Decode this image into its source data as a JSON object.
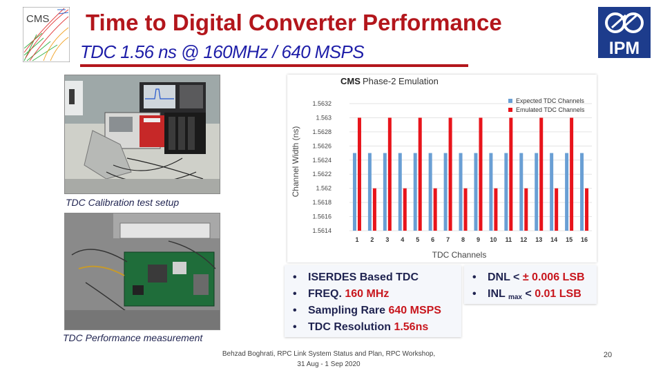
{
  "slide": {
    "title": "Time to Digital Converter Performance",
    "subtitle": "TDC 1.56 ns @ 160MHz / 640 MSPS",
    "logo_left_text": "CMS",
    "logo_right_text": "IPM",
    "photo1_caption": "TDC Calibration test setup",
    "photo2_caption": "TDC Performance measurement",
    "footer_line1": "Behzad Boghrati, RPC Link System Status and Plan, RPC Workshop,",
    "footer_line2": "31 Aug - 1 Sep 2020",
    "slide_number": "20"
  },
  "bullets_left": [
    {
      "text": "ISERDES Based TDC",
      "highlight": ""
    },
    {
      "text": "FREQ. ",
      "highlight": "160 MHz"
    },
    {
      "text": "Sampling Rare  ",
      "highlight": "640 MSPS"
    },
    {
      "text": "TDC Resolution ",
      "highlight": "1.56ns"
    }
  ],
  "bullets_right": [
    {
      "pre": "DNL < ",
      "hl": "± 0.006 LSB",
      "sub": "",
      "mid": ""
    },
    {
      "pre": "INL ",
      "sub": "max",
      "mid": " < ",
      "hl": "0.01 LSB"
    }
  ],
  "chart_data": {
    "type": "bar",
    "title_prefix": "CMS",
    "title": "Phase-2 Emulation",
    "xlabel": "TDC Channels",
    "ylabel": "Channel Width (ns)",
    "categories": [
      "1",
      "2",
      "3",
      "4",
      "5",
      "6",
      "7",
      "8",
      "9",
      "10",
      "11",
      "12",
      "13",
      "14",
      "15",
      "16"
    ],
    "ylim": [
      1.5614,
      1.5632
    ],
    "yticks": [
      "1.5632",
      "1.563",
      "1.5628",
      "1.5626",
      "1.5624",
      "1.5622",
      "1.562",
      "1.5618",
      "1.5616",
      "1.5614"
    ],
    "legend_position": "top-right",
    "series": [
      {
        "name": "Expected TDC Channels",
        "color": "#6a9fd4",
        "values": [
          1.5625,
          1.5625,
          1.5625,
          1.5625,
          1.5625,
          1.5625,
          1.5625,
          1.5625,
          1.5625,
          1.5625,
          1.5625,
          1.5625,
          1.5625,
          1.5625,
          1.5625,
          1.5625
        ]
      },
      {
        "name": "Emulated TDC Channels",
        "color": "#e8141b",
        "values": [
          1.563,
          1.562,
          1.563,
          1.562,
          1.563,
          1.562,
          1.563,
          1.562,
          1.563,
          1.562,
          1.563,
          1.562,
          1.563,
          1.562,
          1.563,
          1.562
        ]
      }
    ]
  }
}
